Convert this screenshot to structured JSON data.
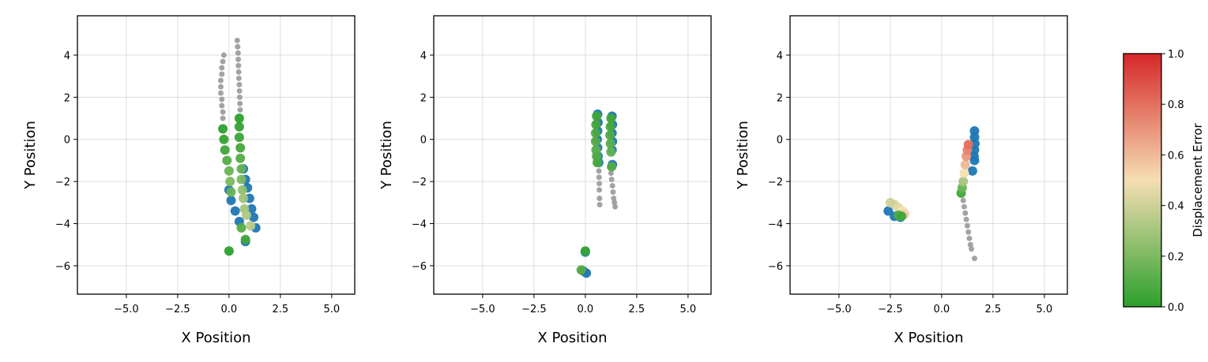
{
  "chart_data": [
    {
      "type": "scatter",
      "xlabel": "X Position",
      "ylabel": "Y Position",
      "xlim": [
        -7.38,
        6.12
      ],
      "ylim": [
        -7.35,
        5.87
      ],
      "grid": true,
      "xticks": [
        {
          "value": -5,
          "label": "−5.0"
        },
        {
          "value": -2.5,
          "label": "−2.5"
        },
        {
          "value": 0,
          "label": "0.0"
        },
        {
          "value": 2.5,
          "label": "2.5"
        },
        {
          "value": 5,
          "label": "5.0"
        }
      ],
      "yticks": [
        {
          "value": -6,
          "label": "−6"
        },
        {
          "value": -4,
          "label": "−4"
        },
        {
          "value": -2,
          "label": "−2"
        },
        0,
        2,
        4
      ],
      "series": [
        {
          "color": "#999999",
          "x": [
            -0.25,
            -0.3,
            -0.35,
            -0.35,
            -0.4,
            -0.4,
            -0.4,
            -0.35,
            -0.35,
            -0.3,
            -0.3,
            0.4,
            0.42,
            0.44,
            0.45,
            0.46,
            0.47,
            0.48,
            0.5,
            0.51,
            0.52,
            0.53,
            0.54
          ],
          "values": [
            4.0,
            3.7,
            3.4,
            3.1,
            2.8,
            2.5,
            2.2,
            1.9,
            1.6,
            1.3,
            1.0,
            4.7,
            4.4,
            4.1,
            3.8,
            3.5,
            3.2,
            2.9,
            2.6,
            2.3,
            2.0,
            1.7,
            1.4
          ]
        },
        {
          "color": "#1f77b4",
          "x": [
            0.0,
            0.1,
            0.3,
            0.5,
            0.7,
            0.8,
            0.9,
            1.0,
            1.1,
            1.2,
            1.3,
            0.8
          ],
          "values": [
            -2.4,
            -2.9,
            -3.4,
            -3.9,
            -1.4,
            -1.9,
            -2.3,
            -2.8,
            -3.3,
            -3.7,
            -4.2,
            -4.85
          ]
        },
        {
          "x": [
            -0.3,
            -0.25,
            -0.2,
            -0.1,
            0.0,
            0.05,
            0.1,
            0.5,
            0.5,
            0.5,
            0.55,
            0.55,
            0.6,
            0.6,
            0.65,
            0.7,
            0.75,
            0.85,
            1.05,
            0.6,
            0.8,
            0.0
          ],
          "values": [
            0.5,
            0.0,
            -0.5,
            -1.0,
            -1.5,
            -2.0,
            -2.5,
            1.0,
            0.6,
            0.1,
            -0.4,
            -0.9,
            -1.4,
            -1.9,
            -2.4,
            -2.8,
            -3.3,
            -3.6,
            -4.1,
            -4.2,
            -4.75,
            -5.3
          ],
          "c": [
            0.0,
            0.02,
            0.05,
            0.1,
            0.15,
            0.2,
            0.15,
            0.0,
            0.02,
            0.04,
            0.06,
            0.1,
            0.15,
            0.2,
            0.25,
            0.28,
            0.3,
            0.32,
            0.35,
            0.1,
            0.05,
            0.0
          ]
        }
      ]
    },
    {
      "type": "scatter",
      "xlabel": "X Position",
      "ylabel": "Y Position",
      "xlim": [
        -7.38,
        6.12
      ],
      "ylim": [
        -7.35,
        5.87
      ],
      "grid": true,
      "xticks": [
        {
          "value": -5,
          "label": "−5.0"
        },
        {
          "value": -2.5,
          "label": "−2.5"
        },
        {
          "value": 0,
          "label": "0.0"
        },
        {
          "value": 2.5,
          "label": "2.5"
        },
        {
          "value": 5,
          "label": "5.0"
        }
      ],
      "yticks": [
        {
          "value": -6,
          "label": "−6"
        },
        {
          "value": -4,
          "label": "−4"
        },
        {
          "value": -2,
          "label": "−2"
        },
        0,
        2,
        4
      ],
      "series": [
        {
          "color": "#999999",
          "x": [
            0.65,
            0.66,
            0.67,
            0.68,
            0.68,
            0.69,
            0.7,
            1.2,
            1.25,
            1.28,
            1.32,
            1.35,
            1.38,
            1.42,
            1.45
          ],
          "values": [
            -1.2,
            -1.5,
            -1.8,
            -2.1,
            -2.4,
            -2.8,
            -3.1,
            -1.3,
            -1.6,
            -1.9,
            -2.2,
            -2.5,
            -2.8,
            -3.0,
            -3.2
          ]
        },
        {
          "color": "#1f77b4",
          "x": [
            0.6,
            0.62,
            0.6,
            0.58,
            0.6,
            0.62,
            0.65,
            1.3,
            1.32,
            1.3,
            1.32,
            1.3,
            1.32,
            0.0,
            -0.1,
            0.05
          ],
          "values": [
            1.2,
            0.8,
            0.4,
            0.0,
            -0.4,
            -0.8,
            -1.1,
            1.1,
            0.7,
            0.3,
            -0.1,
            -0.5,
            -1.2,
            -5.35,
            -6.25,
            -6.35
          ]
        },
        {
          "x": [
            0.55,
            0.52,
            0.5,
            0.5,
            0.52,
            0.55,
            0.58,
            1.25,
            1.22,
            1.2,
            1.22,
            1.25,
            1.28,
            0.0,
            -0.2
          ],
          "values": [
            1.1,
            0.7,
            0.3,
            -0.1,
            -0.5,
            -0.8,
            -1.1,
            1.0,
            0.6,
            0.2,
            -0.2,
            -0.6,
            -1.3,
            -5.3,
            -6.2
          ],
          "c": [
            0.05,
            0.06,
            0.08,
            0.1,
            0.12,
            0.1,
            0.08,
            0.05,
            0.07,
            0.09,
            0.12,
            0.14,
            0.1,
            0.03,
            0.1
          ]
        }
      ]
    },
    {
      "type": "scatter",
      "xlabel": "X Position",
      "ylabel": "Y Position",
      "xlim": [
        -7.38,
        6.12
      ],
      "ylim": [
        -7.35,
        5.87
      ],
      "grid": true,
      "xticks": [
        {
          "value": -5,
          "label": "−5.0"
        },
        {
          "value": -2.5,
          "label": "−2.5"
        },
        {
          "value": 0,
          "label": "0.0"
        },
        {
          "value": 2.5,
          "label": "2.5"
        },
        {
          "value": 5,
          "label": "5.0"
        }
      ],
      "yticks": [
        {
          "value": -6,
          "label": "−6"
        },
        {
          "value": -4,
          "label": "−4"
        },
        {
          "value": -2,
          "label": "−2"
        },
        0,
        2,
        4
      ],
      "series": [
        {
          "color": "#999999",
          "x": [
            1.05,
            1.1,
            1.15,
            1.2,
            1.25,
            1.3,
            1.35,
            1.4,
            1.45,
            1.6
          ],
          "values": [
            -2.9,
            -3.2,
            -3.5,
            -3.8,
            -4.1,
            -4.4,
            -4.7,
            -5.0,
            -5.2,
            -5.65
          ]
        },
        {
          "color": "#1f77b4",
          "x": [
            1.6,
            1.6,
            1.62,
            1.6,
            1.58,
            1.6,
            1.5,
            -2.6,
            -2.3,
            -2.0
          ],
          "values": [
            0.4,
            0.1,
            -0.2,
            -0.5,
            -0.8,
            -1.0,
            -1.5,
            -3.4,
            -3.65,
            -3.7
          ]
        },
        {
          "x": [
            0.95,
            1.0,
            1.05,
            1.1,
            1.15,
            1.2,
            1.25,
            1.3,
            -2.5,
            -2.3,
            -2.1,
            -1.9,
            -1.8,
            -2.1,
            -1.95
          ],
          "values": [
            -2.55,
            -2.3,
            -2.0,
            -1.6,
            -1.2,
            -0.8,
            -0.5,
            -0.25,
            -3.0,
            -3.1,
            -3.25,
            -3.4,
            -3.55,
            -3.6,
            -3.65
          ],
          "c": [
            0.05,
            0.15,
            0.3,
            0.5,
            0.6,
            0.7,
            0.75,
            0.8,
            0.4,
            0.4,
            0.45,
            0.5,
            0.55,
            0.1,
            0.05
          ]
        }
      ]
    },
    {
      "type": "colorbar",
      "label": "Displacement Error",
      "ylim": [
        0,
        1
      ],
      "colormap": [
        "#2ca02c",
        "#f5deb3",
        "#d62728"
      ],
      "yticks": [
        {
          "value": 0,
          "label": "0.0"
        },
        {
          "value": 0.2,
          "label": "0.2"
        },
        {
          "value": 0.4,
          "label": "0.4"
        },
        {
          "value": 0.6,
          "label": "0.6"
        },
        {
          "value": 0.8,
          "label": "0.8"
        },
        {
          "value": 1,
          "label": "1.0"
        }
      ]
    }
  ]
}
